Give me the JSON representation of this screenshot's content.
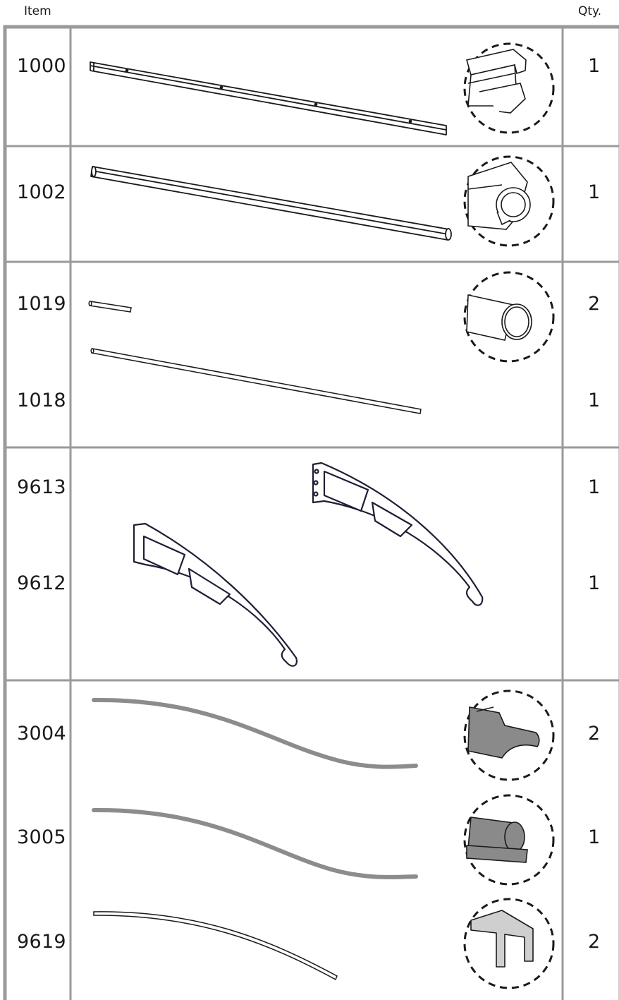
{
  "header": {
    "item": "Item",
    "qty": "Qty."
  },
  "rows": [
    {
      "parts": [
        {
          "item": "1000",
          "qty": "1"
        }
      ],
      "detail_icon": "aluminium-rail-profile-icon"
    },
    {
      "parts": [
        {
          "item": "1002",
          "qty": "1"
        }
      ],
      "detail_icon": "round-gutter-profile-icon"
    },
    {
      "parts": [
        {
          "item": "1019",
          "qty": "2"
        },
        {
          "item": "1018",
          "qty": "1"
        }
      ],
      "detail_icon": "tube-profile-icon"
    },
    {
      "parts": [
        {
          "item": "9613",
          "qty": "1"
        },
        {
          "item": "9612",
          "qty": "1"
        }
      ],
      "detail_icon": "bracket-icon"
    },
    {
      "parts": [
        {
          "item": "3004",
          "qty": "2"
        },
        {
          "item": "3005",
          "qty": "1"
        },
        {
          "item": "9619",
          "qty": "2"
        }
      ],
      "detail_icons": [
        "seal-strip-profile-icon",
        "round-seal-profile-icon",
        "end-cap-profile-icon"
      ]
    }
  ]
}
